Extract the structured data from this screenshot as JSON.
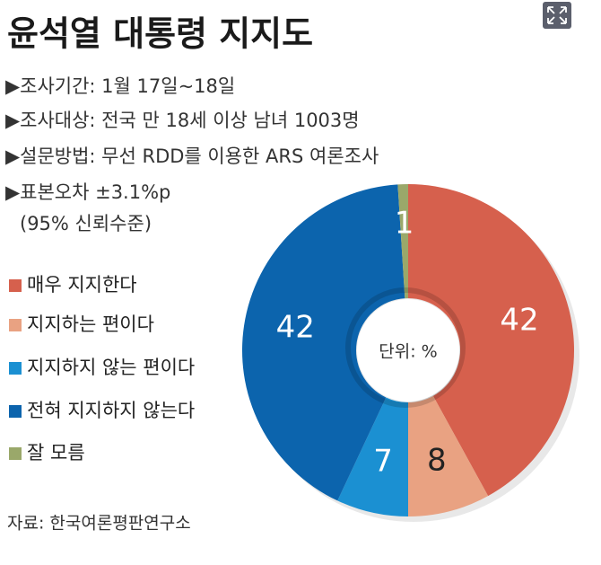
{
  "chart_data": {
    "type": "donut",
    "title": "윤석열 대통령 지지도",
    "notes": [
      "▶조사기간: 1월 17일~18일",
      "▶조사대상: 전국 만 18세 이상 남녀 1003명",
      "▶설문방법: 무선 RDD를 이용한 ARS 여론조사",
      "▶표본오차 ±3.1%p",
      "(95% 신뢰수준)"
    ],
    "categories": [
      "매우 지지한다",
      "지지하는 편이다",
      "지지하지 않는 편이다",
      "전혀 지지하지 않는다",
      "잘 모름"
    ],
    "values": [
      42,
      8,
      7,
      42,
      1
    ],
    "colors": [
      "#d6604d",
      "#e9a282",
      "#1b90d2",
      "#0c64ad",
      "#9aa86a"
    ],
    "unit_label": "단위: %",
    "source": "자료: 한국여론평판연구소"
  }
}
